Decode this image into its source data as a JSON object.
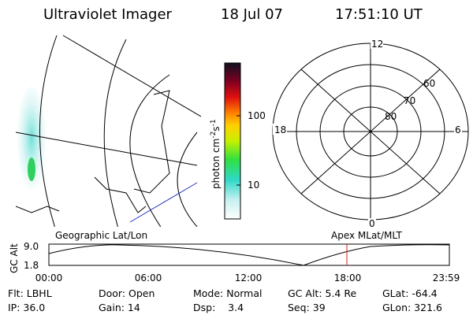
{
  "header": {
    "title": "Ultraviolet Imager",
    "date": "18 Jul 07",
    "time": "17:51:10 UT"
  },
  "colorbar": {
    "label": "photon cm",
    "exp1": "-2",
    "unit2": "s",
    "exp2": "-1",
    "ticks": [
      "100",
      "10"
    ]
  },
  "polar": {
    "hours": [
      "12",
      "18",
      "6",
      "0"
    ],
    "latitudes": [
      "60",
      "70",
      "80"
    ]
  },
  "timeline": {
    "left_title": "Geographic Lat/Lon",
    "right_title": "Apex MLat/MLT",
    "axis_label": "GC Alt",
    "y_labels": [
      "9.0",
      "1.8"
    ],
    "time_labels": [
      "00:00",
      "06:00",
      "12:00",
      "18:00",
      "23:59"
    ]
  },
  "info": {
    "rows": [
      [
        "Flt: LBHL",
        "Door: Open",
        "Mode: Normal",
        "GC Alt: 5.4 Re",
        "GLat: -64.4"
      ],
      [
        "IP: 36.0",
        "Gain: 14",
        "Dsp:    3.4",
        "Seq: 39",
        "GLon: 321.6"
      ]
    ]
  }
}
